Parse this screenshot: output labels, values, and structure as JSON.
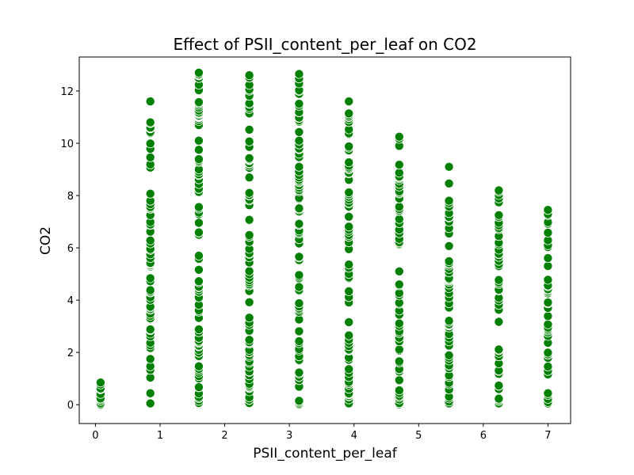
{
  "chart_data": {
    "type": "scatter",
    "title": "Effect of PSII_content_per_leaf on CO2",
    "xlabel": "PSII_content_per_leaf",
    "ylabel": "CO2",
    "xlim": [
      -0.25,
      7.35
    ],
    "ylim": [
      -0.72,
      13.3
    ],
    "xticks": [
      0,
      1,
      2,
      3,
      4,
      5,
      6,
      7
    ],
    "yticks": [
      0,
      2,
      4,
      6,
      8,
      10,
      12
    ],
    "grid": false,
    "marker_color": "#008000",
    "marker_edge_color": "#ffffff",
    "columns": [
      {
        "x": 0.08,
        "ymax": 0.85,
        "n": 10
      },
      {
        "x": 0.85,
        "ymax": 11.6,
        "n": 70
      },
      {
        "x": 1.6,
        "ymax": 12.7,
        "n": 95
      },
      {
        "x": 2.38,
        "ymax": 12.6,
        "n": 90
      },
      {
        "x": 3.15,
        "ymax": 12.65,
        "n": 80
      },
      {
        "x": 3.92,
        "ymax": 11.6,
        "n": 70
      },
      {
        "x": 4.7,
        "ymax": 10.25,
        "n": 62
      },
      {
        "x": 5.47,
        "ymax": 9.1,
        "n": 55
      },
      {
        "x": 6.24,
        "ymax": 8.2,
        "n": 50
      },
      {
        "x": 7.0,
        "ymax": 7.45,
        "n": 45
      }
    ]
  }
}
